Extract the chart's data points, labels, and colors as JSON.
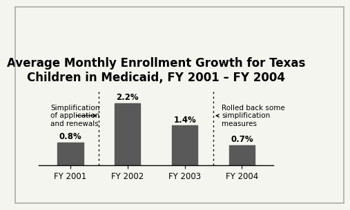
{
  "title": "Average Monthly Enrollment Growth for Texas\nChildren in Medicaid, FY 2001 – FY 2004",
  "categories": [
    "FY 2001",
    "FY 2002",
    "FY 2003",
    "FY 2004"
  ],
  "values": [
    0.8,
    2.2,
    1.4,
    0.7
  ],
  "labels": [
    "0.8%",
    "2.2%",
    "1.4%",
    "0.7%"
  ],
  "bar_color": "#595959",
  "background_color": "#f5f5f0",
  "border_color": "#aaaaaa",
  "annotation1_text": "Simplification\nof application\nand renewals",
  "annotation2_text": "Rolled back some\nsimplification\nmeasures",
  "ylim": [
    0,
    2.7
  ],
  "title_fontsize": 12,
  "label_fontsize": 8.5,
  "tick_fontsize": 8.5,
  "annot_fontsize": 7.5
}
